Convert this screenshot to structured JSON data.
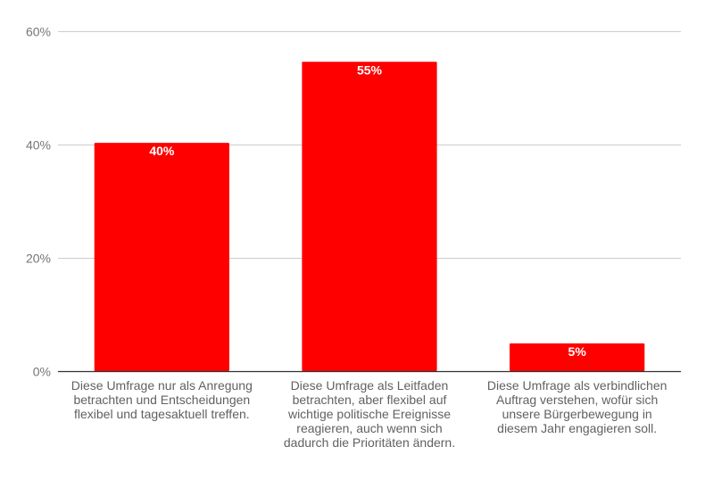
{
  "chart_data": {
    "type": "bar",
    "title": "",
    "xlabel": "",
    "ylabel": "",
    "categories": [
      "Diese Umfrage nur als Anregung betrachten und Entscheidungen flexibel und tagesaktuell treffen.",
      "Diese Umfrage als Leitfaden betrachten, aber flexibel auf wichtige politische Ereignisse reagieren, auch wenn sich dadurch die Prioritäten ändern.",
      "Diese Umfrage als verbindlichen Auftrag verstehen, wofür sich unsere Bürgerbewegung in diesem Jahr engagieren soll."
    ],
    "values": [
      40.3,
      54.6,
      4.9
    ],
    "data_labels": [
      "40%",
      "55%",
      "5%"
    ],
    "ylim": [
      0,
      60
    ],
    "yticks": [
      0,
      20,
      40,
      60
    ],
    "ytick_labels": [
      "0%",
      "20%",
      "40%",
      "60%"
    ],
    "grid": true,
    "legend": "none",
    "bar_color": "#ff0000",
    "gridline_color": "#cccccc",
    "baseline_color": "#333333"
  }
}
